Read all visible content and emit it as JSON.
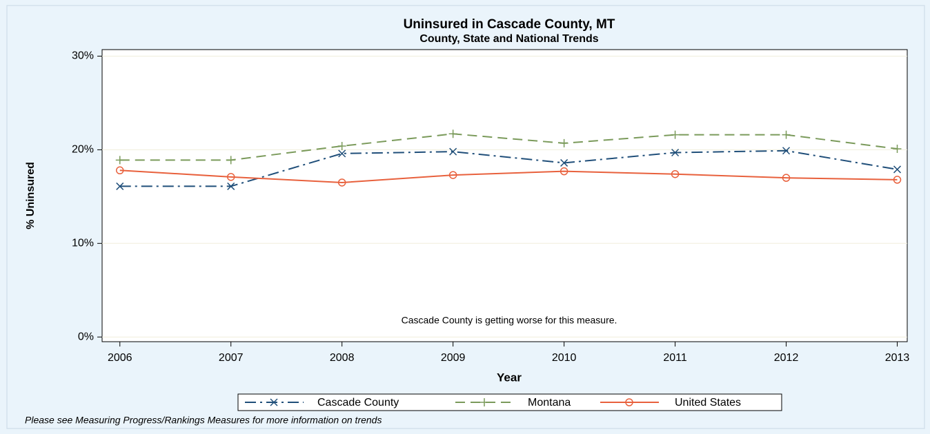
{
  "chart_data": {
    "type": "line",
    "title": "Uninsured in Cascade County, MT",
    "subtitle": "County, State and National Trends",
    "xlabel": "Year",
    "ylabel": "% Uninsured",
    "annotation": "Cascade County is getting worse for this measure.",
    "footnote": "Please see Measuring Progress/Rankings Measures for more information on trends",
    "x": [
      2006,
      2007,
      2008,
      2009,
      2010,
      2011,
      2012,
      2013
    ],
    "series": [
      {
        "name": "Cascade County",
        "color": "#1f4e79",
        "marker": "x",
        "line_style": "dashdot",
        "values": [
          16.1,
          16.1,
          19.6,
          19.8,
          18.6,
          19.7,
          19.9,
          17.9
        ]
      },
      {
        "name": "Montana",
        "color": "#7a9a5a",
        "marker": "plus",
        "line_style": "dashed",
        "values": [
          18.9,
          18.9,
          20.4,
          21.7,
          20.7,
          21.6,
          21.6,
          20.1
        ]
      },
      {
        "name": "United States",
        "color": "#e8603c",
        "marker": "circle",
        "line_style": "solid",
        "values": [
          17.8,
          17.1,
          16.5,
          17.3,
          17.7,
          17.4,
          17.0,
          16.8
        ]
      }
    ],
    "xlim": [
      2005.84,
      2013.09
    ],
    "xticks": [
      2006,
      2007,
      2008,
      2009,
      2010,
      2011,
      2012,
      2013
    ],
    "ylim": [
      -0.5,
      30.7
    ],
    "yticks": [
      {
        "value": 0,
        "label": "0%"
      },
      {
        "value": 10,
        "label": "10%"
      },
      {
        "value": 20,
        "label": "20%"
      },
      {
        "value": 30,
        "label": "30%"
      }
    ],
    "grid": true,
    "legend": "bottom"
  }
}
